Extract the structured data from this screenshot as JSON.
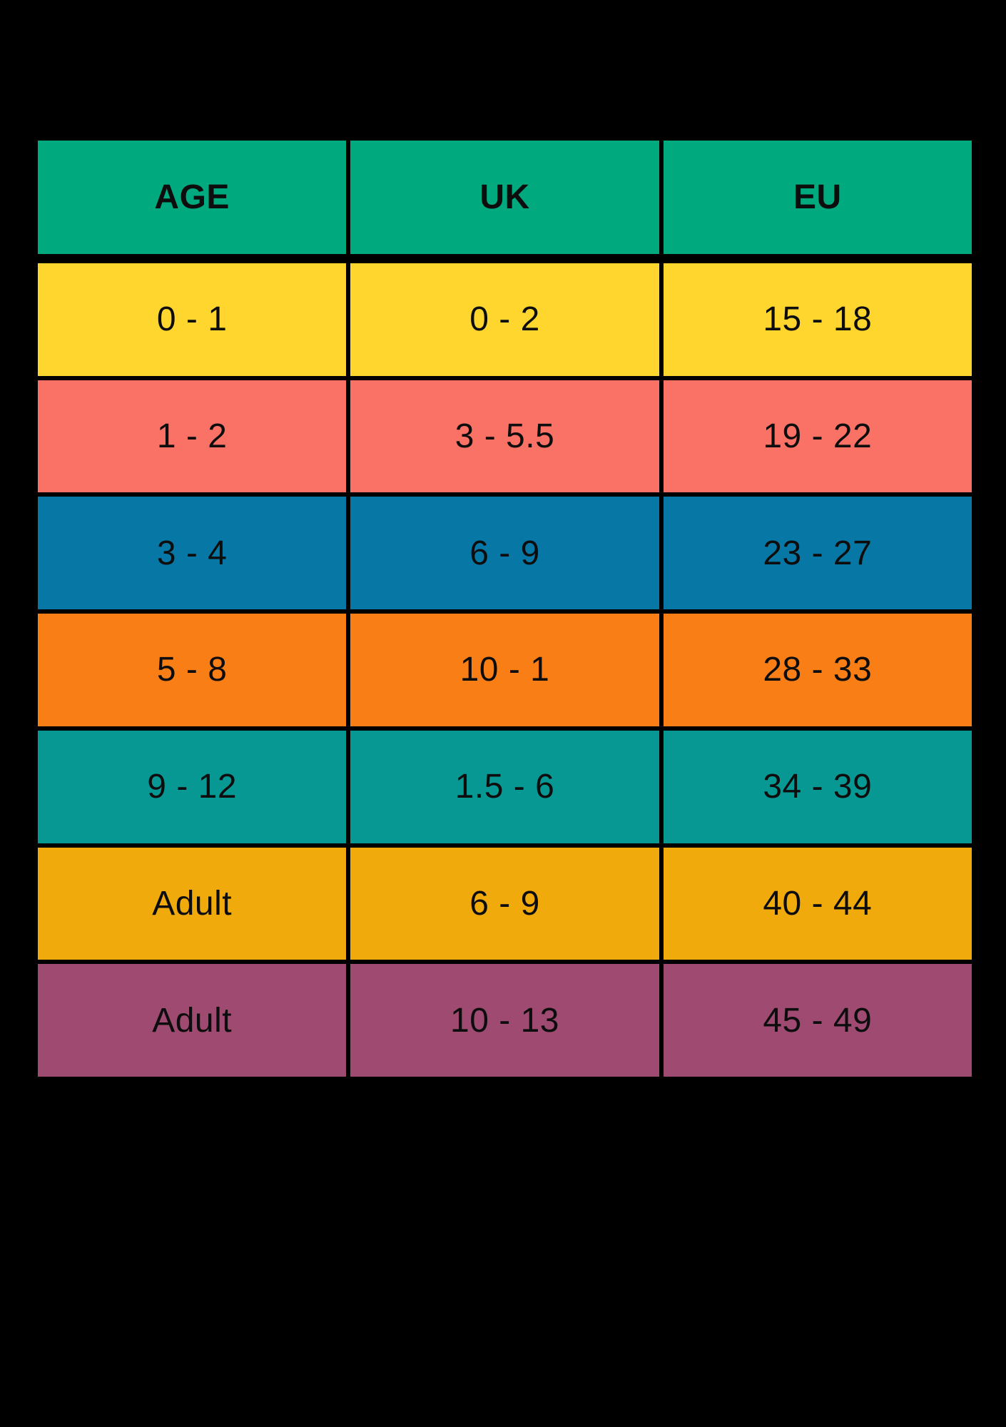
{
  "background": "#000000",
  "border_color": "#000000",
  "text_color": "#0D0D0D",
  "table": {
    "header": {
      "bg": "#00A97E",
      "columns": [
        "AGE",
        "UK",
        "EU"
      ]
    },
    "rows": [
      {
        "age": "0 - 1",
        "uk": "0 - 2",
        "eu": "15 - 18",
        "bg": "#FFD62D"
      },
      {
        "age": "1 - 2",
        "uk": "3 - 5.5",
        "eu": "19 - 22",
        "bg": "#FA7166"
      },
      {
        "age": "3 - 4",
        "uk": "6 - 9",
        "eu": "23 - 27",
        "bg": "#0778A6"
      },
      {
        "age": "5 - 8",
        "uk": "10 - 1",
        "eu": "28 - 33",
        "bg": "#F97E15"
      },
      {
        "age": "9 - 12",
        "uk": "1.5 - 6",
        "eu": "34 - 39",
        "bg": "#089894"
      },
      {
        "age": "Adult",
        "uk": "6 - 9",
        "eu": "40 - 44",
        "bg": "#F0AA0C"
      },
      {
        "age": "Adult",
        "uk": "10 - 13",
        "eu": "45 - 49",
        "bg": "#9E4A71"
      }
    ]
  },
  "chart_data": {
    "type": "table",
    "columns": [
      "AGE",
      "UK",
      "EU"
    ],
    "rows": [
      [
        "0 - 1",
        "0 - 2",
        "15 - 18"
      ],
      [
        "1 - 2",
        "3 - 5.5",
        "19 - 22"
      ],
      [
        "3 - 4",
        "6 - 9",
        "23 - 27"
      ],
      [
        "5 - 8",
        "10 - 1",
        "28 - 33"
      ],
      [
        "9 - 12",
        "1.5 - 6",
        "34 - 39"
      ],
      [
        "Adult",
        "6 - 9",
        "40 - 44"
      ],
      [
        "Adult",
        "10 - 13",
        "45 - 49"
      ]
    ],
    "row_colors": [
      "#FFD62D",
      "#FA7166",
      "#0778A6",
      "#F97E15",
      "#089894",
      "#F0AA0C",
      "#9E4A71"
    ],
    "header_color": "#00A97E",
    "layout": "black background, black 6px cell separators, 13px separator under header row"
  }
}
